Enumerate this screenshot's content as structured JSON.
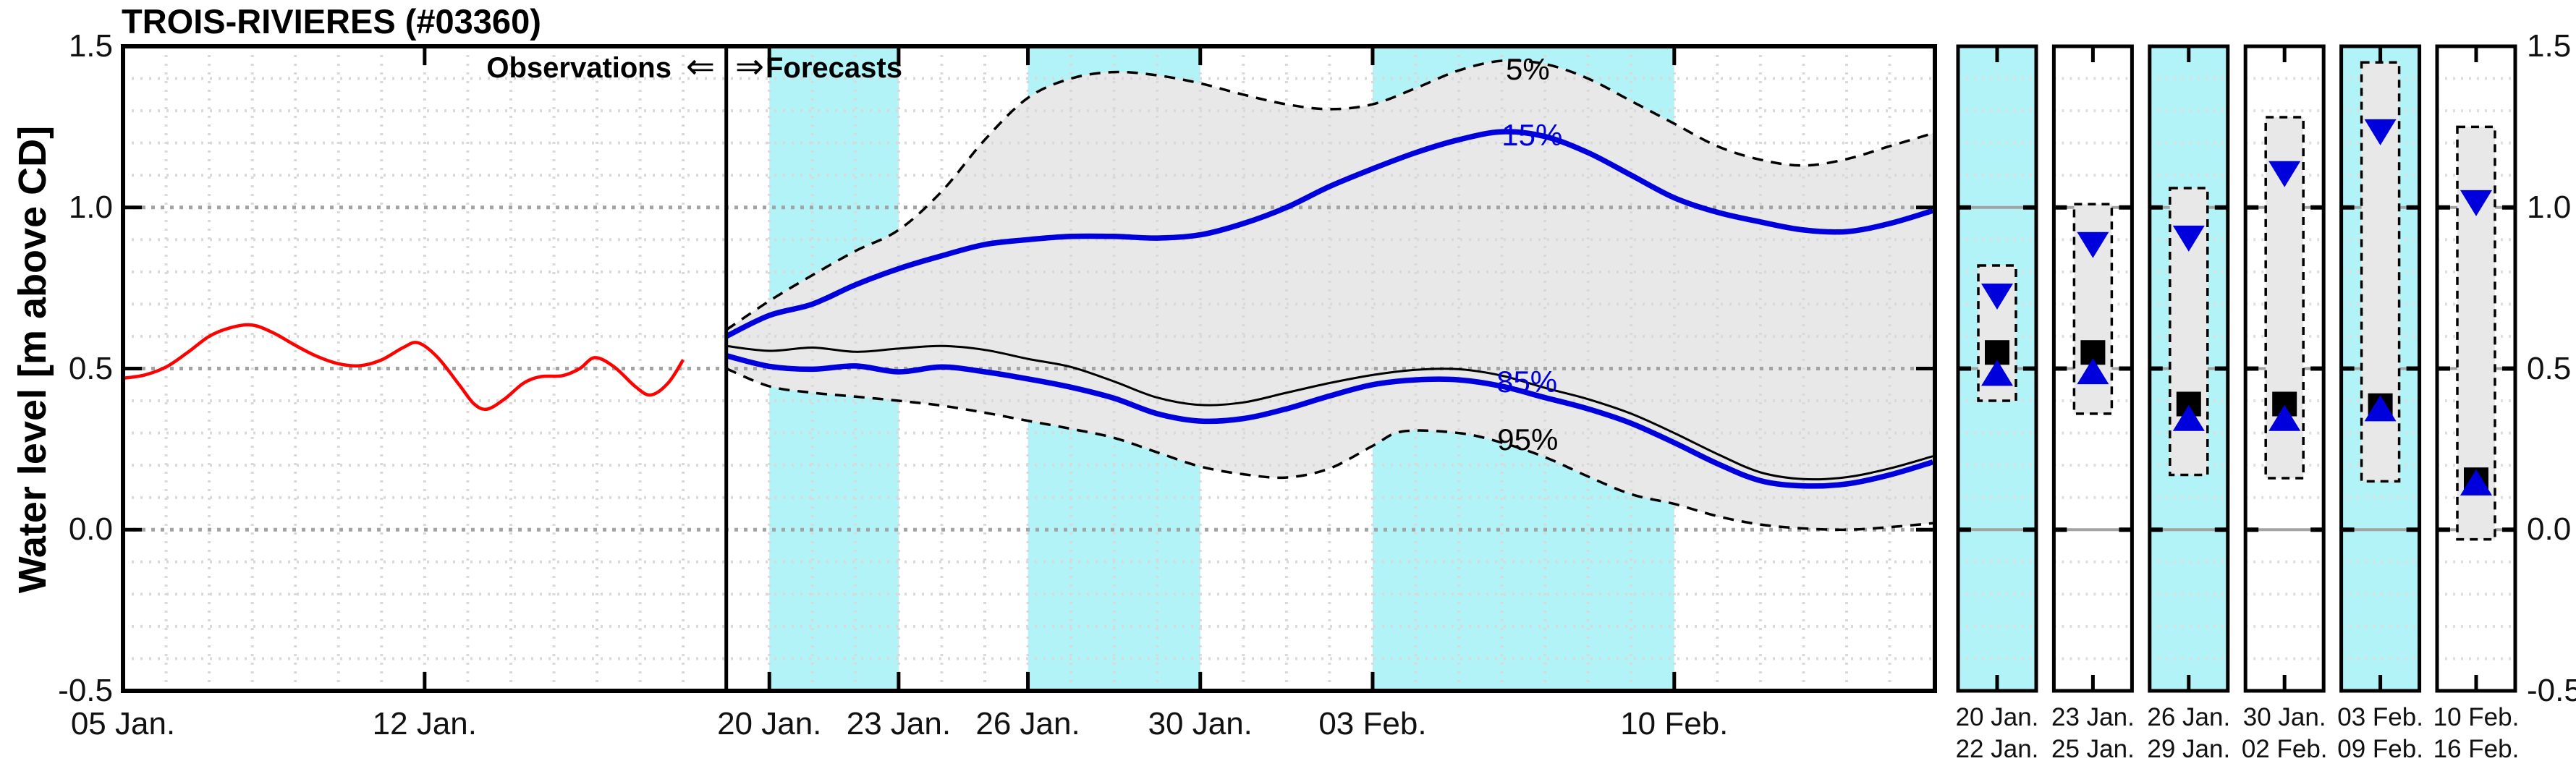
{
  "header": {
    "title": "TROIS-RIVIERES (#03360)"
  },
  "axis": {
    "y_label": "Water level [m above CD]",
    "y_ticks": [
      "1.5",
      "1.0",
      "0.5",
      "0.0",
      "-0.5"
    ],
    "y_tick_values": [
      1.5,
      1.0,
      0.5,
      0.0,
      -0.5
    ],
    "x_ticks": [
      {
        "label": "05 Jan.",
        "day": 0
      },
      {
        "label": "12 Jan.",
        "day": 7
      },
      {
        "label": "20 Jan.",
        "day": 15
      },
      {
        "label": "23 Jan.",
        "day": 18
      },
      {
        "label": "26 Jan.",
        "day": 21
      },
      {
        "label": "30 Jan.",
        "day": 25
      },
      {
        "label": "03 Feb.",
        "day": 29
      },
      {
        "label": "10 Feb.",
        "day": 36
      }
    ]
  },
  "annotations": {
    "observations": "Observations",
    "forecasts": "Forecasts",
    "arrow_left": "⇐",
    "arrow_right": "⇒"
  },
  "colors": {
    "cyan_band": "#b2f3f7",
    "uncertainty_fill": "#e8e8e8",
    "observation_line": "#ff0000",
    "percentile_blue": "#0000dd",
    "median_black": "#000000",
    "grid_minor": "#d9d9d9",
    "grid_major": "#a3a3a3"
  },
  "chart_data": {
    "type": "line",
    "title": "TROIS-RIVIERES (#03360)",
    "ylabel": "Water level [m above CD]",
    "ylim": [
      -0.5,
      1.5
    ],
    "grid": true,
    "day0_label": "05 Jan.",
    "days_total": 42.05,
    "forecast_start_day": 14,
    "observations_end_day": 13,
    "cyan_bands_days": [
      [
        15,
        18
      ],
      [
        21,
        25
      ],
      [
        29,
        36
      ]
    ],
    "observations": {
      "name": "Observations",
      "points": [
        [
          0,
          0.47
        ],
        [
          0.5,
          0.48
        ],
        [
          1,
          0.505
        ],
        [
          1.5,
          0.55
        ],
        [
          2,
          0.6
        ],
        [
          2.5,
          0.627
        ],
        [
          3,
          0.635
        ],
        [
          3.5,
          0.61
        ],
        [
          4,
          0.572
        ],
        [
          4.5,
          0.538
        ],
        [
          5,
          0.515
        ],
        [
          5.5,
          0.509
        ],
        [
          6,
          0.527
        ],
        [
          6.5,
          0.565
        ],
        [
          6.85,
          0.58
        ],
        [
          7.3,
          0.535
        ],
        [
          7.8,
          0.45
        ],
        [
          8.15,
          0.39
        ],
        [
          8.45,
          0.374
        ],
        [
          8.85,
          0.405
        ],
        [
          9.3,
          0.455
        ],
        [
          9.7,
          0.475
        ],
        [
          10.2,
          0.478
        ],
        [
          10.6,
          0.5
        ],
        [
          10.95,
          0.534
        ],
        [
          11.4,
          0.505
        ],
        [
          11.9,
          0.443
        ],
        [
          12.25,
          0.418
        ],
        [
          12.65,
          0.455
        ],
        [
          13,
          0.527
        ]
      ]
    },
    "series": [
      {
        "name": "5%",
        "style": "dashed",
        "color": "#000000",
        "points": [
          [
            14,
            0.62
          ],
          [
            15,
            0.71
          ],
          [
            16,
            0.79
          ],
          [
            17,
            0.865
          ],
          [
            18,
            0.93
          ],
          [
            19,
            1.05
          ],
          [
            20,
            1.21
          ],
          [
            21,
            1.34
          ],
          [
            22,
            1.4
          ],
          [
            23,
            1.42
          ],
          [
            24,
            1.41
          ],
          [
            25,
            1.385
          ],
          [
            26,
            1.35
          ],
          [
            27,
            1.32
          ],
          [
            28,
            1.305
          ],
          [
            29,
            1.32
          ],
          [
            30,
            1.37
          ],
          [
            31,
            1.425
          ],
          [
            32,
            1.455
          ],
          [
            33,
            1.445
          ],
          [
            34,
            1.4
          ],
          [
            35,
            1.33
          ],
          [
            36,
            1.26
          ],
          [
            37,
            1.19
          ],
          [
            38,
            1.148
          ],
          [
            39,
            1.13
          ],
          [
            40,
            1.15
          ],
          [
            41,
            1.19
          ],
          [
            42,
            1.23
          ]
        ]
      },
      {
        "name": "15%",
        "style": "solid",
        "color": "#0000dd",
        "points": [
          [
            14,
            0.6
          ],
          [
            15,
            0.665
          ],
          [
            16,
            0.7
          ],
          [
            17,
            0.76
          ],
          [
            18,
            0.81
          ],
          [
            19,
            0.85
          ],
          [
            20,
            0.885
          ],
          [
            21,
            0.9
          ],
          [
            22,
            0.91
          ],
          [
            23,
            0.91
          ],
          [
            24,
            0.905
          ],
          [
            25,
            0.915
          ],
          [
            26,
            0.95
          ],
          [
            27,
            1.0
          ],
          [
            28,
            1.065
          ],
          [
            29,
            1.12
          ],
          [
            30,
            1.17
          ],
          [
            31,
            1.21
          ],
          [
            32,
            1.235
          ],
          [
            33,
            1.22
          ],
          [
            34,
            1.17
          ],
          [
            35,
            1.1
          ],
          [
            36,
            1.03
          ],
          [
            37,
            0.985
          ],
          [
            38,
            0.955
          ],
          [
            39,
            0.93
          ],
          [
            40,
            0.925
          ],
          [
            41,
            0.95
          ],
          [
            42,
            0.99
          ]
        ]
      },
      {
        "name": "50%",
        "style": "solid",
        "color": "#000000",
        "points": [
          [
            14,
            0.57
          ],
          [
            15,
            0.555
          ],
          [
            16,
            0.565
          ],
          [
            17,
            0.552
          ],
          [
            18,
            0.562
          ],
          [
            19,
            0.57
          ],
          [
            20,
            0.558
          ],
          [
            21,
            0.53
          ],
          [
            22,
            0.505
          ],
          [
            23,
            0.46
          ],
          [
            24,
            0.41
          ],
          [
            25,
            0.387
          ],
          [
            26,
            0.395
          ],
          [
            27,
            0.425
          ],
          [
            28,
            0.455
          ],
          [
            29,
            0.48
          ],
          [
            30,
            0.496
          ],
          [
            31,
            0.498
          ],
          [
            32,
            0.478
          ],
          [
            33,
            0.44
          ],
          [
            34,
            0.405
          ],
          [
            35,
            0.36
          ],
          [
            36,
            0.3
          ],
          [
            37,
            0.235
          ],
          [
            38,
            0.178
          ],
          [
            39,
            0.157
          ],
          [
            40,
            0.163
          ],
          [
            41,
            0.19
          ],
          [
            42,
            0.228
          ]
        ]
      },
      {
        "name": "85%",
        "style": "solid",
        "color": "#0000dd",
        "points": [
          [
            14,
            0.54
          ],
          [
            15,
            0.507
          ],
          [
            16,
            0.498
          ],
          [
            17,
            0.508
          ],
          [
            18,
            0.49
          ],
          [
            19,
            0.505
          ],
          [
            20,
            0.49
          ],
          [
            21,
            0.468
          ],
          [
            22,
            0.442
          ],
          [
            23,
            0.408
          ],
          [
            24,
            0.36
          ],
          [
            25,
            0.337
          ],
          [
            26,
            0.345
          ],
          [
            27,
            0.375
          ],
          [
            28,
            0.415
          ],
          [
            29,
            0.45
          ],
          [
            30,
            0.465
          ],
          [
            31,
            0.465
          ],
          [
            32,
            0.445
          ],
          [
            33,
            0.41
          ],
          [
            34,
            0.375
          ],
          [
            35,
            0.33
          ],
          [
            36,
            0.27
          ],
          [
            37,
            0.205
          ],
          [
            38,
            0.152
          ],
          [
            39,
            0.136
          ],
          [
            40,
            0.142
          ],
          [
            41,
            0.17
          ],
          [
            42,
            0.21
          ]
        ]
      },
      {
        "name": "95%",
        "style": "dashed",
        "color": "#000000",
        "points": [
          [
            14,
            0.5
          ],
          [
            15,
            0.445
          ],
          [
            16,
            0.425
          ],
          [
            17,
            0.413
          ],
          [
            18,
            0.4
          ],
          [
            19,
            0.385
          ],
          [
            20,
            0.363
          ],
          [
            21,
            0.338
          ],
          [
            22,
            0.313
          ],
          [
            23,
            0.285
          ],
          [
            24,
            0.24
          ],
          [
            25,
            0.196
          ],
          [
            26,
            0.172
          ],
          [
            27,
            0.162
          ],
          [
            28,
            0.19
          ],
          [
            29,
            0.26
          ],
          [
            29.7,
            0.305
          ],
          [
            31,
            0.3
          ],
          [
            32,
            0.27
          ],
          [
            33,
            0.225
          ],
          [
            34,
            0.165
          ],
          [
            35,
            0.11
          ],
          [
            36,
            0.08
          ],
          [
            37,
            0.042
          ],
          [
            38,
            0.016
          ],
          [
            39,
            0.004
          ],
          [
            40,
            0.0
          ],
          [
            41,
            0.008
          ],
          [
            42,
            0.02
          ]
        ]
      }
    ],
    "labels_on_chart": [
      {
        "text": "5%",
        "day": 32.6,
        "value": 1.428,
        "color": "#000000"
      },
      {
        "text": "15%",
        "day": 32.7,
        "value": 1.224,
        "color": "#0000dd"
      },
      {
        "text": "85%",
        "day": 32.58,
        "value": 0.458,
        "color": "#0000dd"
      },
      {
        "text": "95%",
        "day": 32.6,
        "value": 0.279,
        "color": "#000000"
      }
    ],
    "panels": [
      {
        "dates": [
          "20 Jan.",
          "22 Jan."
        ],
        "shaded": true,
        "range": [
          0.4,
          0.82
        ],
        "triangle_down": 0.73,
        "square": 0.55,
        "triangle_up": 0.48
      },
      {
        "dates": [
          "23 Jan.",
          "25 Jan."
        ],
        "shaded": false,
        "range": [
          0.36,
          1.01
        ],
        "triangle_down": 0.89,
        "square": 0.55,
        "triangle_up": 0.485
      },
      {
        "dates": [
          "26 Jan.",
          "29 Jan."
        ],
        "shaded": true,
        "range": [
          0.17,
          1.06
        ],
        "triangle_down": 0.91,
        "square": 0.39,
        "triangle_up": 0.34
      },
      {
        "dates": [
          "30 Jan.",
          "02 Feb."
        ],
        "shaded": false,
        "range": [
          0.16,
          1.28
        ],
        "triangle_down": 1.11,
        "square": 0.39,
        "triangle_up": 0.34
      },
      {
        "dates": [
          "03 Feb.",
          "09 Feb."
        ],
        "shaded": true,
        "range": [
          0.15,
          1.45
        ],
        "triangle_down": 1.24,
        "square": 0.385,
        "triangle_up": 0.37
      },
      {
        "dates": [
          "10 Feb.",
          "16 Feb."
        ],
        "shaded": false,
        "range": [
          -0.03,
          1.25
        ],
        "triangle_down": 1.02,
        "square": 0.155,
        "triangle_up": 0.14
      }
    ]
  }
}
